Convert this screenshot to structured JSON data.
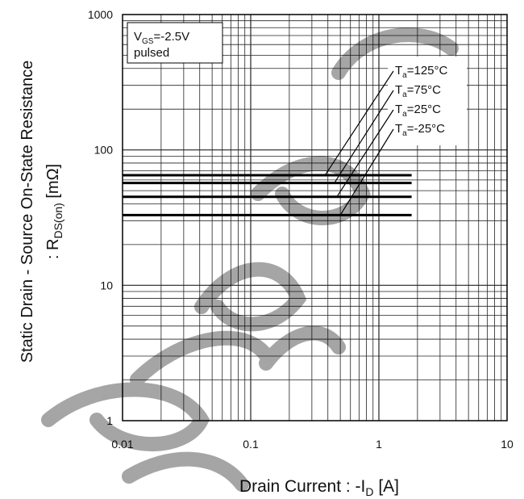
{
  "chart_data": {
    "type": "line",
    "x_scale": "log",
    "y_scale": "log",
    "xlim": [
      0.01,
      10
    ],
    "ylim": [
      1,
      1000
    ],
    "grid": true,
    "x_ticks": [
      "0.01",
      "0.1",
      "1",
      "10"
    ],
    "y_ticks": [
      "1",
      "10",
      "100",
      "1000"
    ],
    "xlabel": {
      "main": "Drain Current : -I",
      "sub": "D",
      "unit": " [A]"
    },
    "ylabel": {
      "line1": "Static Drain - Source On-State Resistance",
      "line2_main": ": R",
      "line2_sub": "DS(on)",
      "line2_unit": " [mΩ]"
    },
    "condition": {
      "line1_main": "V",
      "line1_sub": "GS",
      "line1_rest": "=-2.5V",
      "line2": "pulsed"
    },
    "series": [
      {
        "name": {
          "main": "T",
          "sub": "a",
          "rest": "=125°C"
        },
        "x": [
          0.01,
          1.8
        ],
        "y": [
          65,
          65
        ]
      },
      {
        "name": {
          "main": "T",
          "sub": "a",
          "rest": "=75°C"
        },
        "x": [
          0.01,
          1.8
        ],
        "y": [
          57,
          57
        ]
      },
      {
        "name": {
          "main": "T",
          "sub": "a",
          "rest": "=25°C"
        },
        "x": [
          0.01,
          1.8
        ],
        "y": [
          45,
          45
        ]
      },
      {
        "name": {
          "main": "T",
          "sub": "a",
          "rest": "=-25°C"
        },
        "x": [
          0.01,
          1.8
        ],
        "y": [
          33,
          33
        ]
      }
    ]
  }
}
